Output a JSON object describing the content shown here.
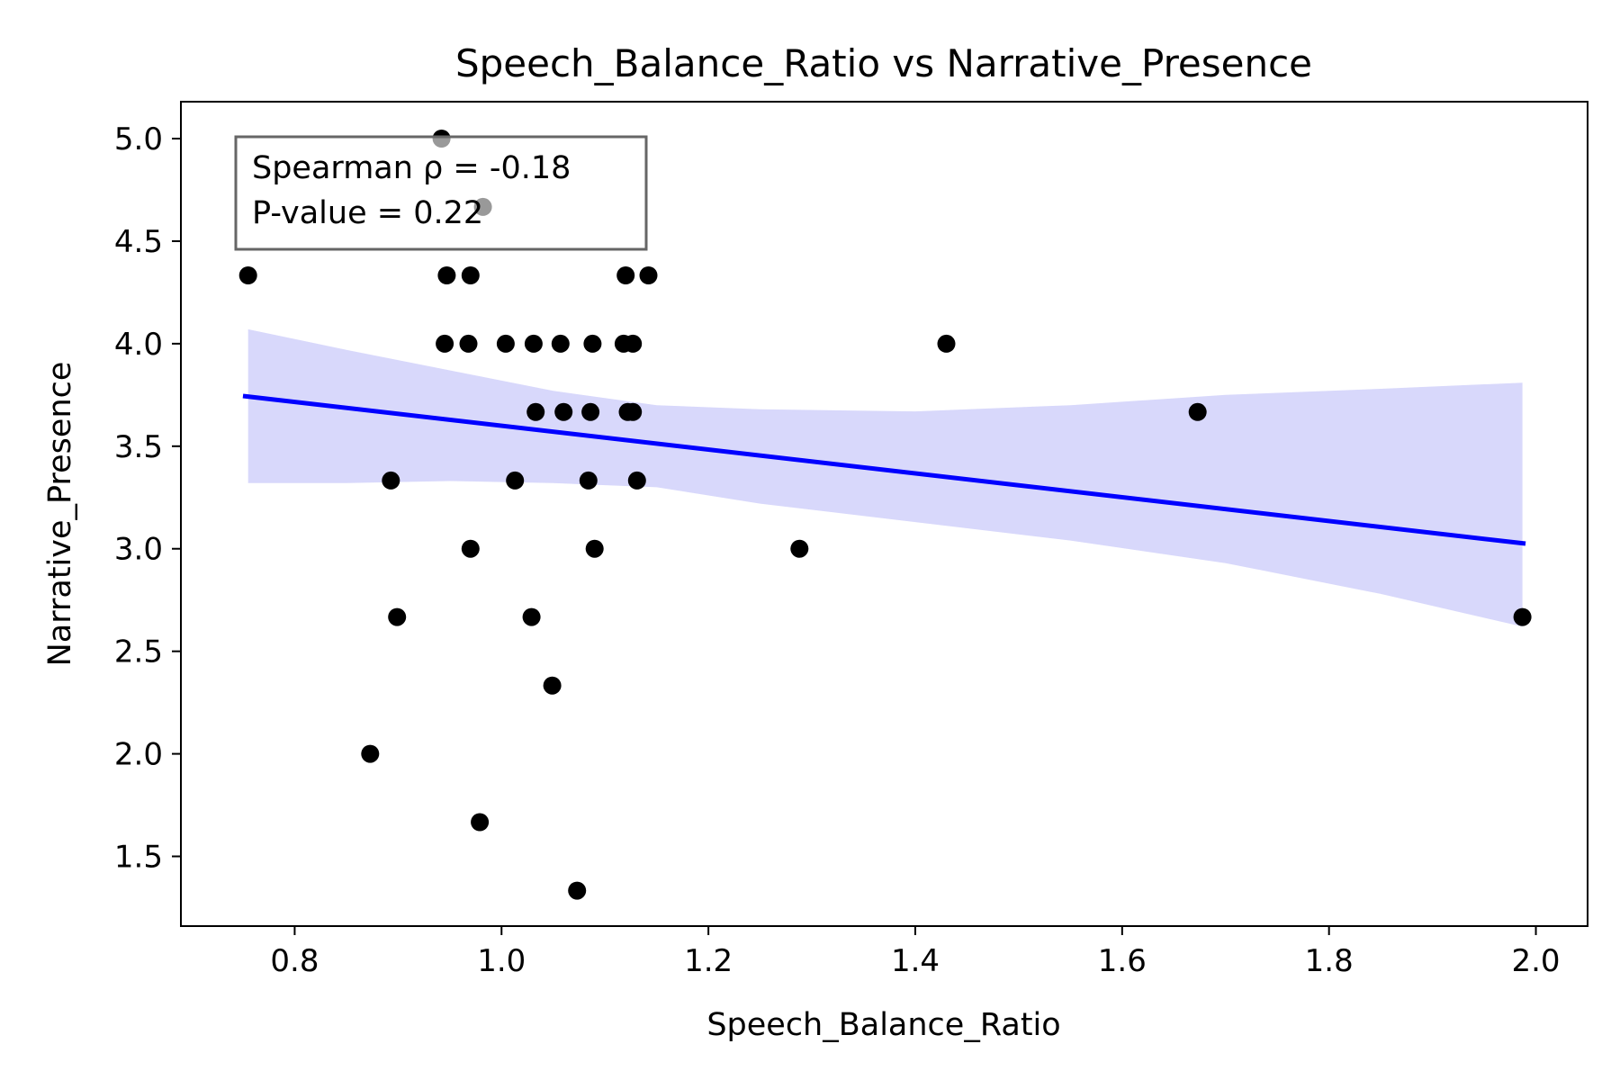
{
  "chart_data": {
    "type": "scatter",
    "title": "Speech_Balance_Ratio vs Narrative_Presence",
    "xlabel": "Speech_Balance_Ratio",
    "ylabel": "Narrative_Presence",
    "xlim": [
      0.69,
      2.05
    ],
    "ylim": [
      1.16,
      5.18
    ],
    "x_ticks": [
      0.8,
      1.0,
      1.2,
      1.4,
      1.6,
      1.8,
      2.0
    ],
    "x_tick_labels": [
      "0.8",
      "1.0",
      "1.2",
      "1.4",
      "1.6",
      "1.8",
      "2.0"
    ],
    "y_ticks": [
      1.5,
      2.0,
      2.5,
      3.0,
      3.5,
      4.0,
      4.5,
      5.0
    ],
    "y_tick_labels": [
      "1.5",
      "2.0",
      "2.5",
      "3.0",
      "3.5",
      "4.0",
      "4.5",
      "5.0"
    ],
    "grid": false,
    "colors": {
      "points": "#000000",
      "regression_line": "#0000ff",
      "confidence_band": "#d8d8fb"
    },
    "points": [
      {
        "x": 0.755,
        "y": 4.333
      },
      {
        "x": 0.873,
        "y": 2.0
      },
      {
        "x": 0.893,
        "y": 3.333
      },
      {
        "x": 0.899,
        "y": 2.667
      },
      {
        "x": 0.942,
        "y": 5.0
      },
      {
        "x": 0.945,
        "y": 4.0
      },
      {
        "x": 0.947,
        "y": 4.333
      },
      {
        "x": 0.968,
        "y": 4.0
      },
      {
        "x": 0.97,
        "y": 4.333
      },
      {
        "x": 0.97,
        "y": 3.0
      },
      {
        "x": 0.979,
        "y": 1.667
      },
      {
        "x": 0.982,
        "y": 4.667
      },
      {
        "x": 1.004,
        "y": 4.0
      },
      {
        "x": 1.013,
        "y": 3.333
      },
      {
        "x": 1.029,
        "y": 2.667
      },
      {
        "x": 1.031,
        "y": 4.0
      },
      {
        "x": 1.033,
        "y": 3.667
      },
      {
        "x": 1.049,
        "y": 2.333
      },
      {
        "x": 1.057,
        "y": 4.0
      },
      {
        "x": 1.06,
        "y": 3.667
      },
      {
        "x": 1.073,
        "y": 1.333
      },
      {
        "x": 1.084,
        "y": 3.333
      },
      {
        "x": 1.086,
        "y": 3.667
      },
      {
        "x": 1.088,
        "y": 4.0
      },
      {
        "x": 1.09,
        "y": 3.0
      },
      {
        "x": 1.118,
        "y": 4.0
      },
      {
        "x": 1.12,
        "y": 4.333
      },
      {
        "x": 1.122,
        "y": 3.667
      },
      {
        "x": 1.127,
        "y": 4.0
      },
      {
        "x": 1.127,
        "y": 3.667
      },
      {
        "x": 1.131,
        "y": 3.333
      },
      {
        "x": 1.142,
        "y": 4.333
      },
      {
        "x": 1.288,
        "y": 3.0
      },
      {
        "x": 1.43,
        "y": 4.0
      },
      {
        "x": 1.673,
        "y": 3.667
      },
      {
        "x": 1.987,
        "y": 2.667
      }
    ],
    "regression_line": {
      "x": [
        0.75,
        1.99
      ],
      "y": [
        3.745,
        3.025
      ]
    },
    "confidence_band": {
      "x": [
        0.755,
        0.85,
        0.95,
        1.05,
        1.15,
        1.25,
        1.4,
        1.55,
        1.7,
        1.85,
        1.987
      ],
      "upper": [
        4.07,
        3.97,
        3.87,
        3.77,
        3.7,
        3.68,
        3.67,
        3.7,
        3.75,
        3.78,
        3.81
      ],
      "lower": [
        3.32,
        3.32,
        3.33,
        3.32,
        3.3,
        3.22,
        3.13,
        3.04,
        2.93,
        2.78,
        2.62
      ]
    },
    "annotation": {
      "lines": [
        "Spearman ρ = -0.18",
        "P-value = 0.22"
      ],
      "position": "top-left"
    }
  }
}
